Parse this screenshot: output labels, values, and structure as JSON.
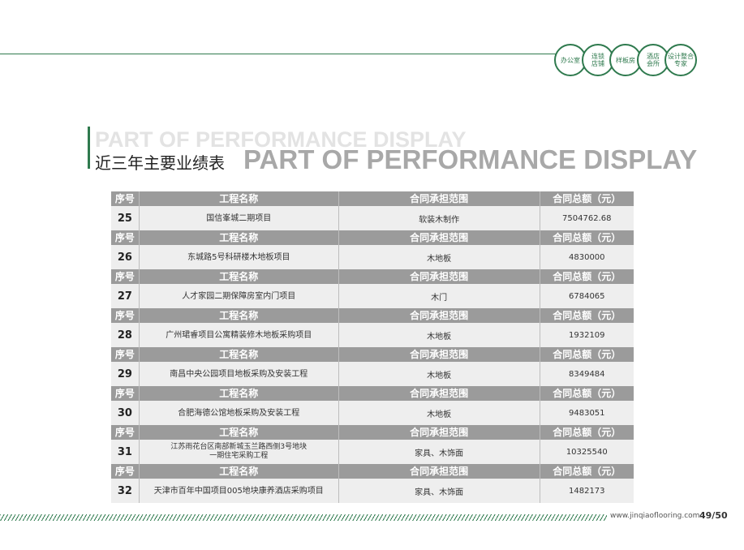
{
  "header": {
    "circles": [
      "办公室",
      "连锁店铺",
      "样板房",
      "酒店会所",
      "设计整合专家"
    ]
  },
  "title": {
    "ghost_en": "PART OF PERFORMANCE DISPLAY",
    "zh": "近三年主要业绩表",
    "en": "PART OF PERFORMANCE DISPLAY"
  },
  "table": {
    "headers": [
      "序号",
      "工程名称",
      "合同承担范围",
      "合同总额（元）"
    ],
    "rows": [
      {
        "no": "25",
        "name": "国信峯城二期项目",
        "scope": "软装木制作",
        "amount": "7504762.68"
      },
      {
        "no": "26",
        "name": "东城路5号科研楼木地板项目",
        "scope": "木地板",
        "amount": "4830000"
      },
      {
        "no": "27",
        "name": "人才家园二期保障房室内门项目",
        "scope": "木门",
        "amount": "6784065"
      },
      {
        "no": "28",
        "name": "广州珺睿项目公寓精装修木地板采购项目",
        "scope": "木地板",
        "amount": "1932109"
      },
      {
        "no": "29",
        "name": "南昌中央公园项目地板采购及安装工程",
        "scope": "木地板",
        "amount": "8349484"
      },
      {
        "no": "30",
        "name": "合肥海德公馆地板采购及安装工程",
        "scope": "木地板",
        "amount": "9483051"
      },
      {
        "no": "31",
        "name_line1": "江苏雨花台区南部新城玉兰路西侧3号地块",
        "name_line2": "一期住宅采购工程",
        "scope": "家具、木饰面",
        "amount": "10325540"
      },
      {
        "no": "32",
        "name": "天津市百年中国项目005地块康养酒店采购项目",
        "scope": "家具、木饰面",
        "amount": "1482173"
      }
    ]
  },
  "footer": {
    "url": "www.jinqiaoflooring.com",
    "page": "49/50"
  }
}
